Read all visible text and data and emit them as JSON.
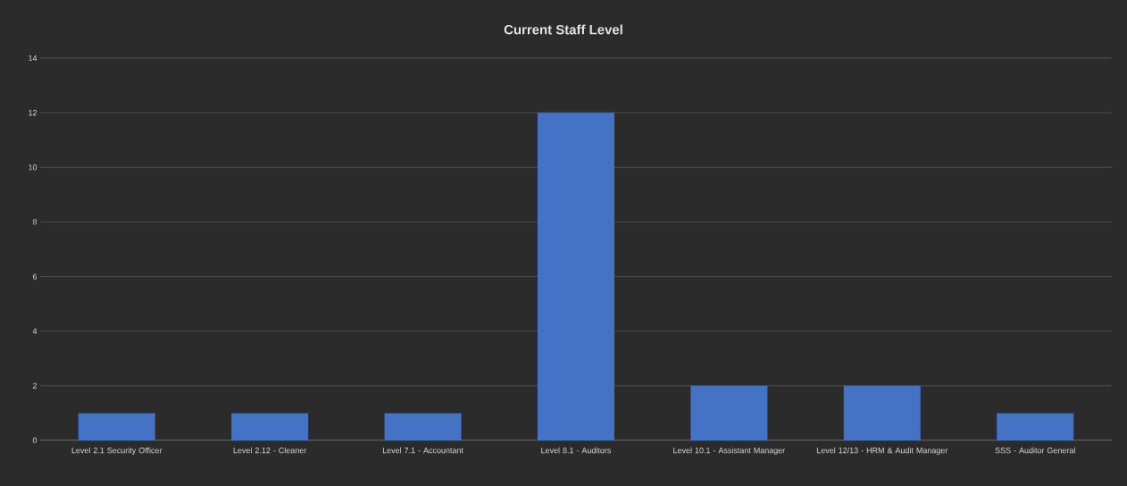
{
  "chart_data": {
    "type": "bar",
    "title": "Current Staff Level",
    "categories": [
      "Level 2.1 Security Officer",
      "Level 2.12 - Cleaner",
      "Level 7.1 - Accountant",
      "Level 8.1 - Auditors",
      "Level 10.1 - Assistant Manager",
      "Level 12/13 - HRM & Audit Manager",
      "SSS - Auditor General"
    ],
    "values": [
      1,
      1,
      1,
      12,
      2,
      2,
      1
    ],
    "color": "#4472c4",
    "ylim": [
      0,
      14
    ],
    "yticks": [
      0,
      2,
      4,
      6,
      8,
      10,
      12,
      14
    ],
    "grid": "y"
  }
}
